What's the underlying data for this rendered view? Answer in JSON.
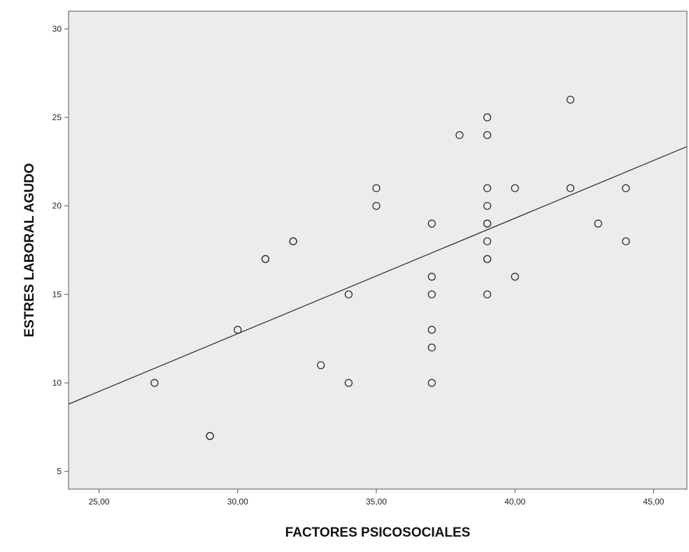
{
  "chart_data": {
    "type": "scatter",
    "title": "",
    "xlabel": "FACTORES PSICOSOCIALES",
    "ylabel": "ESTRES LABORAL AGUDO",
    "xlim": [
      23.9,
      46.2
    ],
    "ylim": [
      4,
      31
    ],
    "x_ticks": [
      25,
      30,
      35,
      40,
      45
    ],
    "x_tick_labels": [
      "25,00",
      "30,00",
      "35,00",
      "40,00",
      "45,00"
    ],
    "y_ticks": [
      5,
      10,
      15,
      20,
      25,
      30
    ],
    "y_tick_labels": [
      "5",
      "10",
      "15",
      "20",
      "25",
      "30"
    ],
    "grid": false,
    "fit_line": {
      "x": [
        23.9,
        46.2
      ],
      "y": [
        8.8,
        23.35
      ]
    },
    "points": [
      {
        "x": 27,
        "y": 10
      },
      {
        "x": 29,
        "y": 7
      },
      {
        "x": 29,
        "y": 7
      },
      {
        "x": 30,
        "y": 13
      },
      {
        "x": 31,
        "y": 17
      },
      {
        "x": 31,
        "y": 17
      },
      {
        "x": 32,
        "y": 18
      },
      {
        "x": 32,
        "y": 18
      },
      {
        "x": 33,
        "y": 11
      },
      {
        "x": 34,
        "y": 15
      },
      {
        "x": 34,
        "y": 10
      },
      {
        "x": 35,
        "y": 21
      },
      {
        "x": 35,
        "y": 20
      },
      {
        "x": 37,
        "y": 19
      },
      {
        "x": 37,
        "y": 16
      },
      {
        "x": 37,
        "y": 15
      },
      {
        "x": 37,
        "y": 13
      },
      {
        "x": 37,
        "y": 12
      },
      {
        "x": 37,
        "y": 10
      },
      {
        "x": 38,
        "y": 24
      },
      {
        "x": 39,
        "y": 25
      },
      {
        "x": 39,
        "y": 24
      },
      {
        "x": 39,
        "y": 21
      },
      {
        "x": 39,
        "y": 20
      },
      {
        "x": 39,
        "y": 19
      },
      {
        "x": 39,
        "y": 19
      },
      {
        "x": 39,
        "y": 18
      },
      {
        "x": 39,
        "y": 17
      },
      {
        "x": 39,
        "y": 17
      },
      {
        "x": 39,
        "y": 15
      },
      {
        "x": 40,
        "y": 21
      },
      {
        "x": 40,
        "y": 16
      },
      {
        "x": 42,
        "y": 26
      },
      {
        "x": 42,
        "y": 21
      },
      {
        "x": 43,
        "y": 19
      },
      {
        "x": 44,
        "y": 21
      },
      {
        "x": 44,
        "y": 18
      }
    ]
  }
}
